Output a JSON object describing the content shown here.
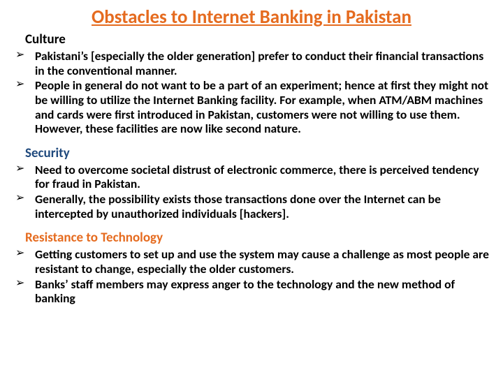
{
  "title": "Obstacles to Internet Banking in Pakistan",
  "title_color": "#e56b1f",
  "sections": [
    {
      "heading": "Culture",
      "heading_color": "#000000",
      "bullets": [
        "Pakistani’s [especially the older generation] prefer to conduct their financial transactions in the conventional manner.",
        "People in general do not want to be a part of an experiment; hence at first they might not be willing to utilize the Internet Banking facility. For example, when ATM/ABM machines and cards were first introduced in Pakistan, customers were not willing to use them. However, these facilities are now like second nature."
      ]
    },
    {
      "heading": "Security",
      "heading_color": "#1f497d",
      "bullets": [
        "Need to overcome societal distrust of electronic commerce, there is perceived tendency for fraud in Pakistan.",
        "Generally, the possibility exists those transactions done over the Internet can be intercepted by unauthorized individuals [hackers]."
      ]
    },
    {
      "heading": "Resistance to Technology",
      "heading_color": "#e56b1f",
      "bullets": [
        "Getting customers to set up and use the system may cause a challenge as most people are resistant to change, especially the older customers.",
        "Banks’ staff members may express anger to the technology and the new method of banking"
      ]
    }
  ],
  "body_text_color": "#000000",
  "background_color": "#ffffff"
}
